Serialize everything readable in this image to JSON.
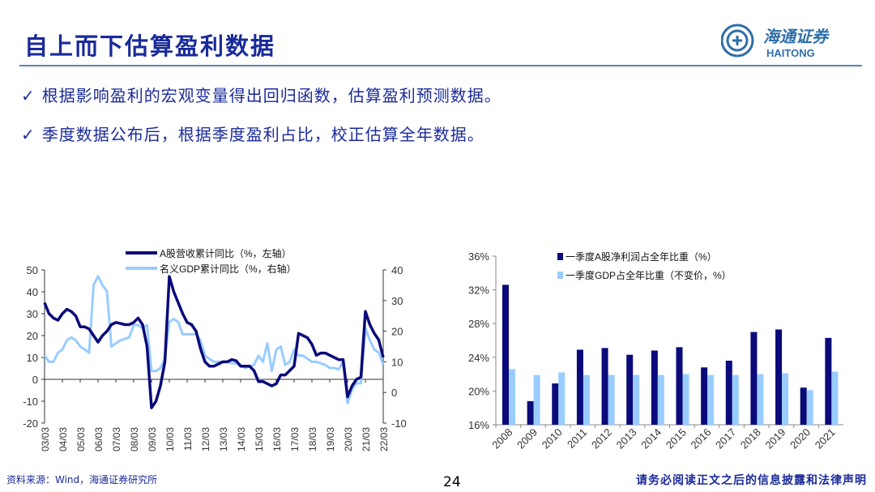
{
  "header": {
    "title": "自上而下估算盈利数据",
    "logo_text_cn": "海通证券",
    "logo_text_en": "HAITONG",
    "logo_icon": "haitong-emblem"
  },
  "bullets": [
    {
      "icon": "check-icon",
      "text": "根据影响盈利的宏观变量得出回归函数，估算盈利预测数据。"
    },
    {
      "icon": "check-icon",
      "text": "季度数据公布后，根据季度盈利占比，校正估算全年数据。"
    }
  ],
  "footer": {
    "source": "资料来源：Wind，海通证券研究所",
    "page_number": "24",
    "disclaimer": "请务必阅读正文之后的信息披露和法律声明"
  },
  "colors": {
    "accent": "#1a2a9a",
    "dark_series": "#0a0a7a",
    "light_series": "#99ccff"
  },
  "chart_data": [
    {
      "type": "line",
      "x_ticks": [
        "03/03",
        "04/03",
        "05/03",
        "06/03",
        "07/03",
        "08/03",
        "09/03",
        "10/03",
        "11/03",
        "12/03",
        "13/03",
        "14/03",
        "15/03",
        "16/03",
        "17/03",
        "18/03",
        "19/03",
        "20/03",
        "21/03",
        "22/03"
      ],
      "y_left_ticks": [
        "50",
        "40",
        "30",
        "20",
        "10",
        "0",
        "-10",
        "-20"
      ],
      "y_right_ticks": [
        "40",
        "30",
        "20",
        "10",
        "0",
        "-10"
      ],
      "ylim_left": [
        -20,
        50
      ],
      "ylim_right": [
        -10,
        40
      ],
      "legend_placement": "top",
      "series": [
        {
          "name": "A股营收累计同比（%，左轴）",
          "axis": "left",
          "color": "#0a0a7a",
          "values": [
            35,
            30,
            28,
            27,
            30,
            32,
            31,
            29,
            24,
            24,
            23,
            20,
            17,
            20,
            22,
            25,
            26,
            25.5,
            25,
            25,
            26,
            28,
            25,
            15,
            -13,
            -10,
            -3,
            8,
            47,
            40,
            35,
            30,
            26,
            25,
            22,
            14,
            8,
            6,
            6,
            7,
            8,
            8,
            9,
            8.5,
            6,
            6,
            6,
            4,
            -1,
            -1,
            -2,
            -3,
            -2,
            2,
            2,
            4,
            6,
            21,
            20,
            19,
            16,
            11,
            12,
            12,
            11,
            10,
            9,
            9,
            -8,
            -3,
            0,
            1,
            31,
            25,
            21,
            18,
            10
          ]
        },
        {
          "name": "名义GDP累计同比（%，右轴）",
          "axis": "right",
          "color": "#99ccff",
          "values": [
            12,
            10,
            10,
            13,
            14,
            17,
            18,
            17,
            15,
            14,
            13,
            35,
            38,
            35,
            33,
            15,
            16,
            17,
            17.5,
            18,
            22,
            22,
            21,
            22,
            7,
            7,
            8,
            11,
            23,
            24,
            23,
            19,
            19,
            19,
            19,
            17,
            12,
            11,
            10,
            10,
            10,
            10,
            9.5,
            9.5,
            9,
            8,
            8.5,
            9,
            12,
            10,
            16,
            7,
            14,
            15,
            9,
            10,
            14,
            12,
            12,
            11,
            10,
            10,
            9.5,
            9,
            8,
            8,
            7.5,
            10,
            -3.5,
            1,
            3,
            3,
            21,
            17,
            14,
            13,
            9
          ]
        }
      ]
    },
    {
      "type": "bar",
      "categories": [
        "2008",
        "2009",
        "2010",
        "2011",
        "2012",
        "2013",
        "2014",
        "2015",
        "2016",
        "2017",
        "2018",
        "2019",
        "2020",
        "2021"
      ],
      "y_ticks": [
        "36%",
        "32%",
        "28%",
        "24%",
        "20%",
        "16%"
      ],
      "ylim": [
        16,
        36
      ],
      "legend_placement": "top",
      "series": [
        {
          "name": "一季度A股净利润占全年比重（%）",
          "color": "#0a0a7a",
          "values": [
            32.6,
            18.8,
            20.9,
            24.9,
            25.1,
            24.3,
            24.8,
            25.2,
            22.8,
            23.6,
            27.0,
            27.3,
            20.4,
            26.3
          ]
        },
        {
          "name": "一季度GDP占全年比重（不变价，%）",
          "color": "#99ccff",
          "values": [
            22.6,
            21.9,
            22.2,
            21.9,
            21.9,
            21.9,
            21.9,
            22.0,
            21.9,
            21.9,
            22.0,
            22.1,
            20.1,
            22.3
          ]
        }
      ]
    }
  ]
}
